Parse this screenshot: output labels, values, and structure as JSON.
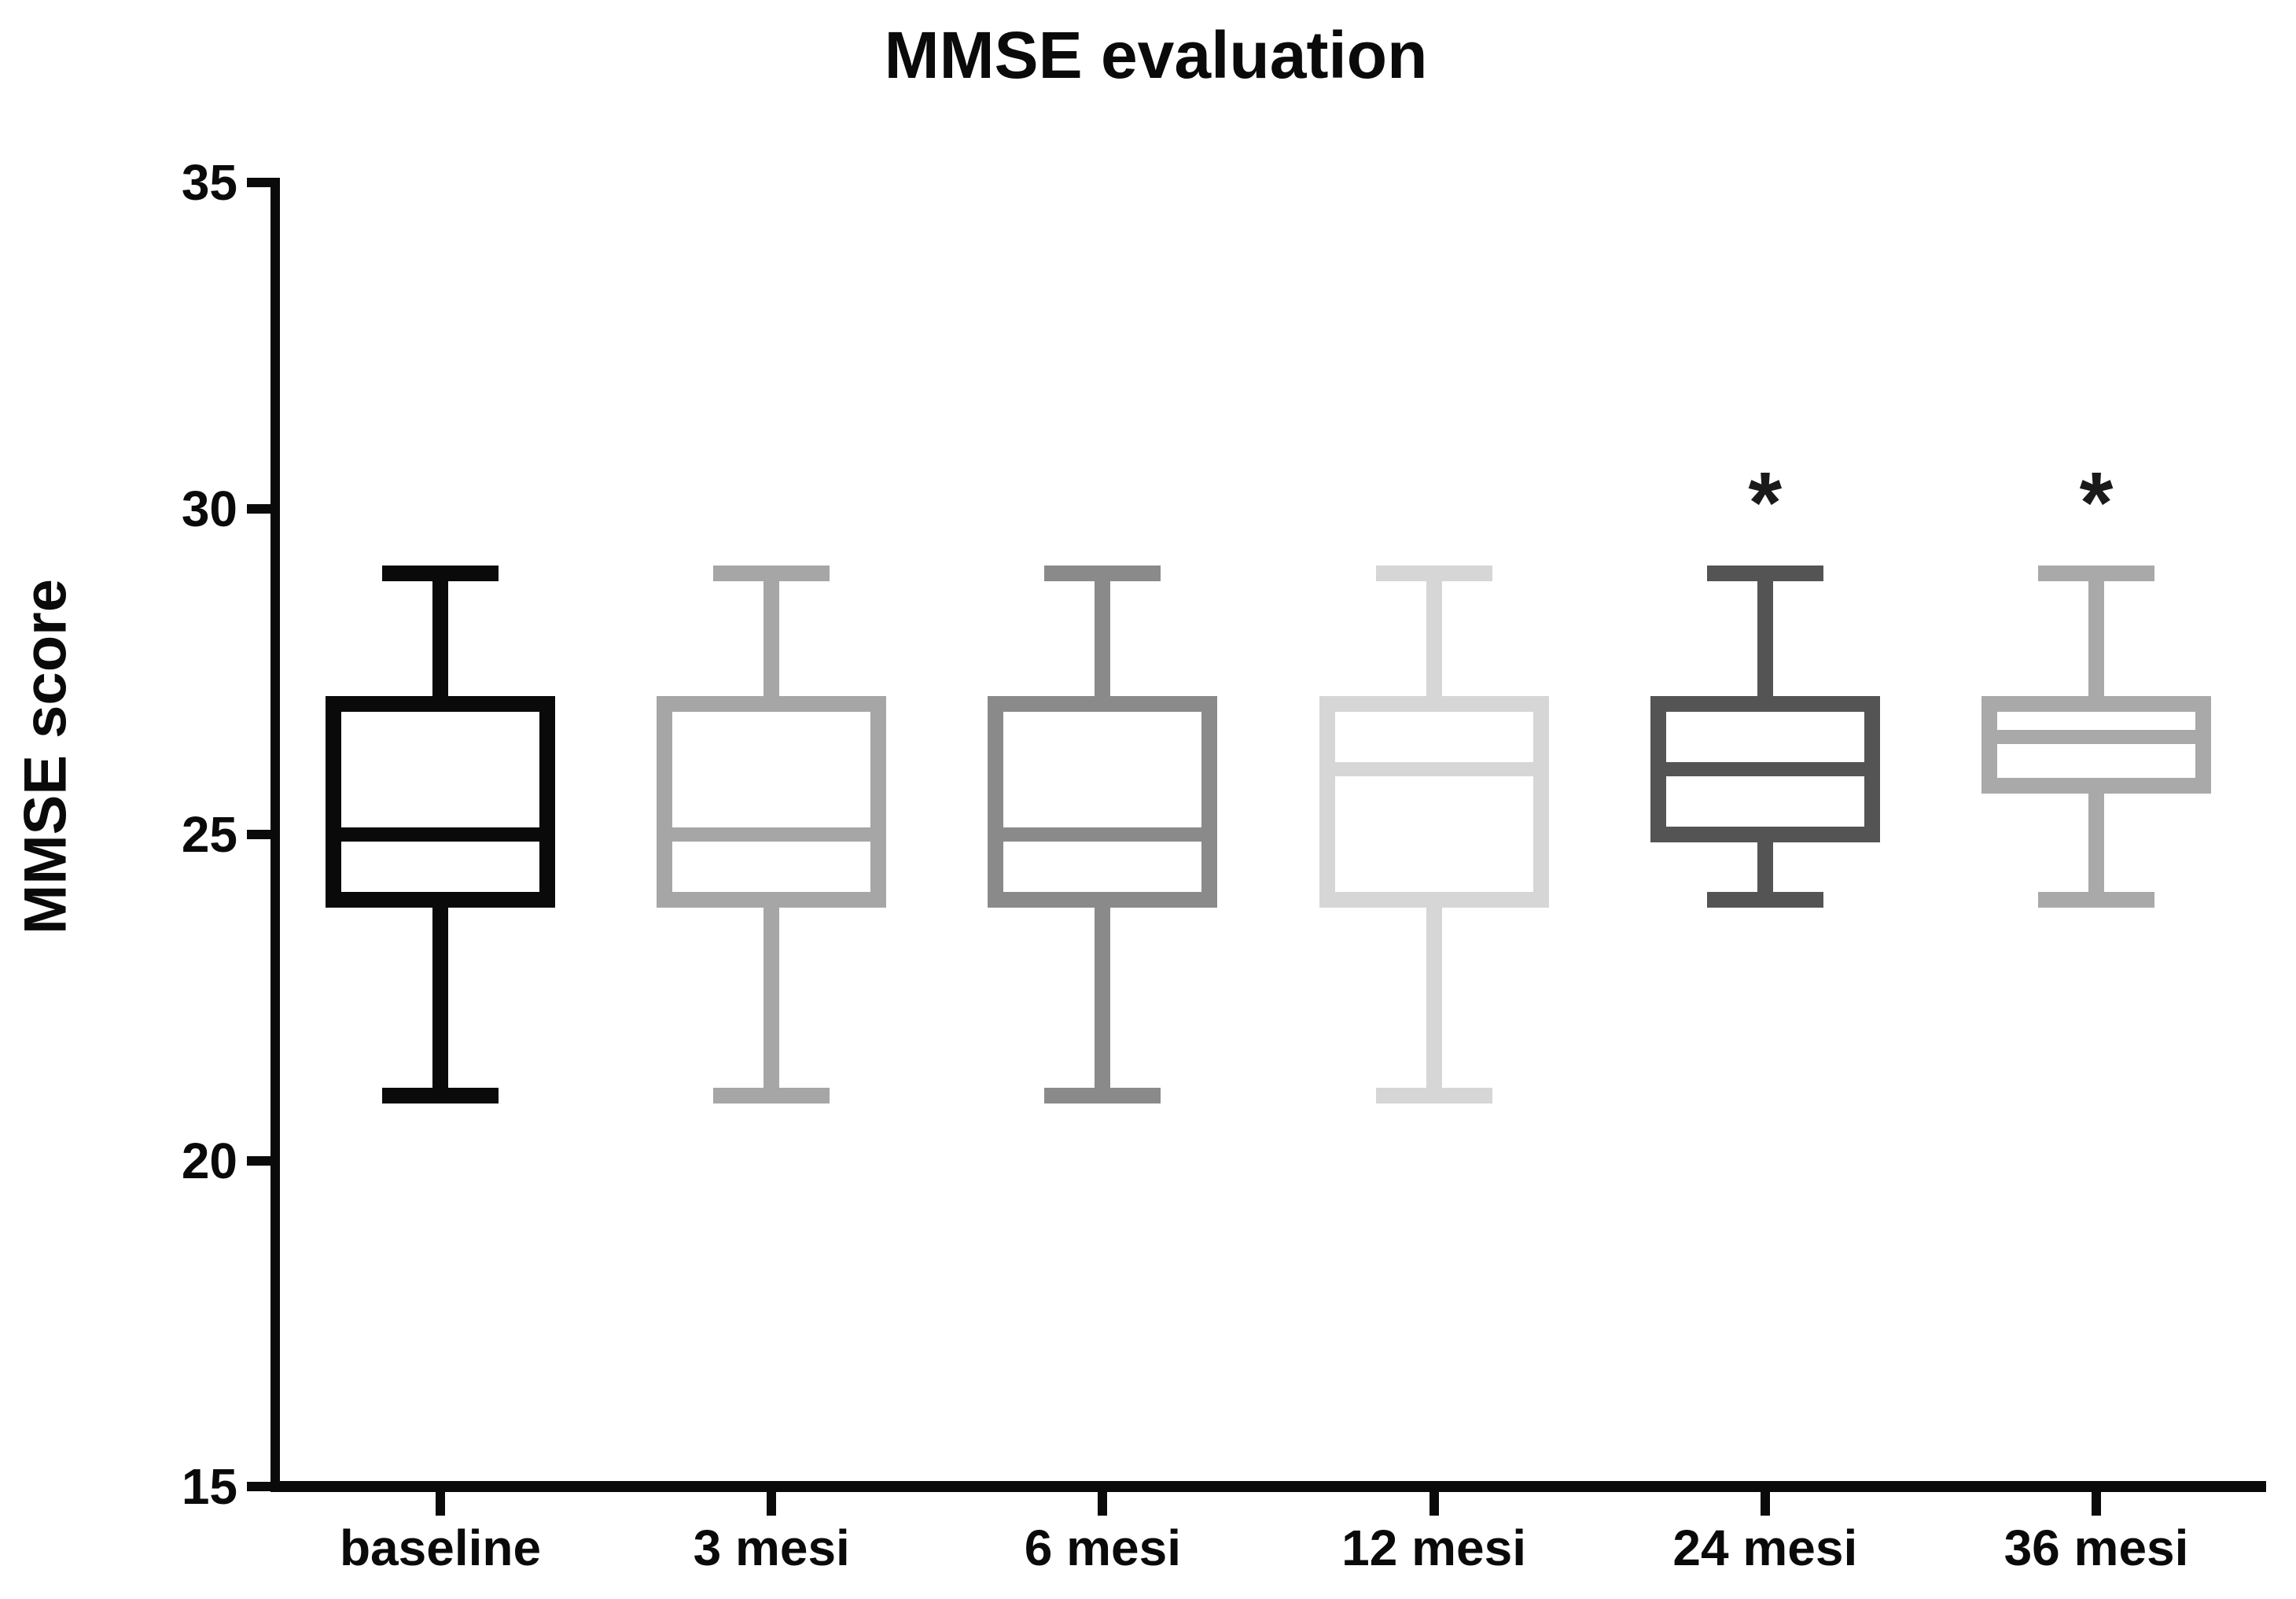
{
  "figure": {
    "title": "MMSE evaluation",
    "y_axis_label": "MMSE score",
    "background_color": "#ffffff",
    "axis_color": "#0a0a0a",
    "significance_marker": "*"
  },
  "chart_data": {
    "type": "boxplot",
    "title": "MMSE evaluation",
    "xlabel": "",
    "ylabel": "MMSE score",
    "ylim": [
      15,
      35
    ],
    "yticks": [
      35,
      30,
      25,
      20,
      15
    ],
    "grid": false,
    "legend": false,
    "categories": [
      "baseline",
      "3 mesi",
      "6 mesi",
      "12 mesi",
      "24 mesi",
      "36 mesi"
    ],
    "series": [
      {
        "name": "baseline",
        "min": 21,
        "q1": 24,
        "median": 25,
        "q3": 27,
        "max": 29,
        "color": "#0a0a0a",
        "annotation": ""
      },
      {
        "name": "3 mesi",
        "min": 21,
        "q1": 24,
        "median": 25,
        "q3": 27,
        "max": 29,
        "color": "#a6a6a6",
        "annotation": ""
      },
      {
        "name": "6 mesi",
        "min": 21,
        "q1": 24,
        "median": 25,
        "q3": 27,
        "max": 29,
        "color": "#8a8a8a",
        "annotation": ""
      },
      {
        "name": "12 mesi",
        "min": 21,
        "q1": 24,
        "median": 26,
        "q3": 27,
        "max": 29,
        "color": "#d6d6d6",
        "annotation": ""
      },
      {
        "name": "24 mesi",
        "min": 24,
        "q1": 25,
        "median": 26,
        "q3": 27,
        "max": 29,
        "color": "#545454",
        "annotation": "*"
      },
      {
        "name": "36 mesi",
        "min": 24,
        "q1": 25.75,
        "median": 26.5,
        "q3": 27,
        "max": 29,
        "color": "#a9a9a9",
        "annotation": "*"
      }
    ]
  }
}
